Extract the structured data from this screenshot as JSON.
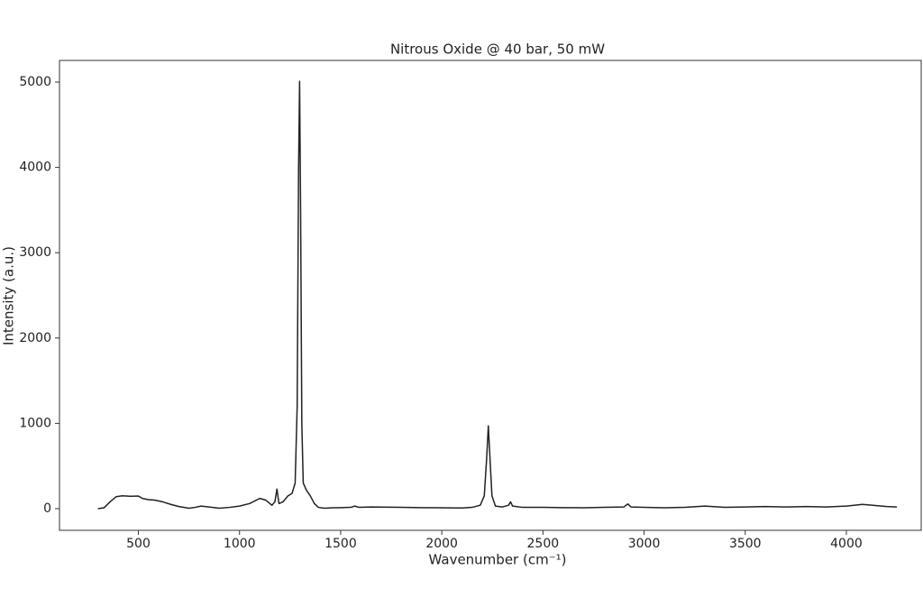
{
  "chart_data": {
    "type": "line",
    "title": "Nitrous Oxide @ 40 bar, 50 mW",
    "x_label": "Wavenumber (cm⁻¹)",
    "y_label": "Intensity (a.u.)",
    "xlim": [
      110,
      4370
    ],
    "ylim": [
      -254,
      5254
    ],
    "xticks": [
      500,
      1000,
      1500,
      2000,
      2500,
      3000,
      3500,
      4000
    ],
    "yticks": [
      0,
      1000,
      2000,
      3000,
      4000,
      5000
    ],
    "grid": false,
    "series": [
      {
        "color": "#222222",
        "x": [
          300,
          330,
          360,
          390,
          420,
          460,
          500,
          520,
          550,
          580,
          620,
          660,
          700,
          750,
          780,
          810,
          850,
          900,
          950,
          1000,
          1050,
          1100,
          1130,
          1160,
          1175,
          1185,
          1195,
          1215,
          1240,
          1260,
          1275,
          1285,
          1292,
          1297,
          1302,
          1308,
          1315,
          1330,
          1350,
          1370,
          1390,
          1420,
          1460,
          1500,
          1550,
          1570,
          1590,
          1650,
          1700,
          1800,
          1900,
          2000,
          2100,
          2150,
          2190,
          2210,
          2222,
          2230,
          2238,
          2248,
          2265,
          2300,
          2330,
          2340,
          2350,
          2400,
          2500,
          2600,
          2700,
          2800,
          2900,
          2920,
          2935,
          3000,
          3100,
          3200,
          3300,
          3400,
          3500,
          3600,
          3700,
          3800,
          3900,
          4000,
          4080,
          4150,
          4200,
          4250
        ],
        "values": [
          0,
          10,
          80,
          140,
          150,
          145,
          148,
          120,
          105,
          100,
          80,
          50,
          25,
          5,
          15,
          30,
          20,
          5,
          15,
          30,
          60,
          120,
          100,
          40,
          80,
          230,
          60,
          80,
          150,
          180,
          300,
          1200,
          4000,
          5010,
          3500,
          1000,
          300,
          220,
          150,
          60,
          15,
          5,
          10,
          12,
          15,
          30,
          15,
          20,
          18,
          15,
          12,
          10,
          8,
          15,
          40,
          150,
          600,
          970,
          600,
          150,
          30,
          20,
          40,
          80,
          30,
          15,
          15,
          12,
          10,
          15,
          20,
          55,
          20,
          15,
          10,
          15,
          30,
          15,
          20,
          25,
          20,
          25,
          20,
          30,
          50,
          35,
          25,
          20
        ]
      }
    ]
  }
}
